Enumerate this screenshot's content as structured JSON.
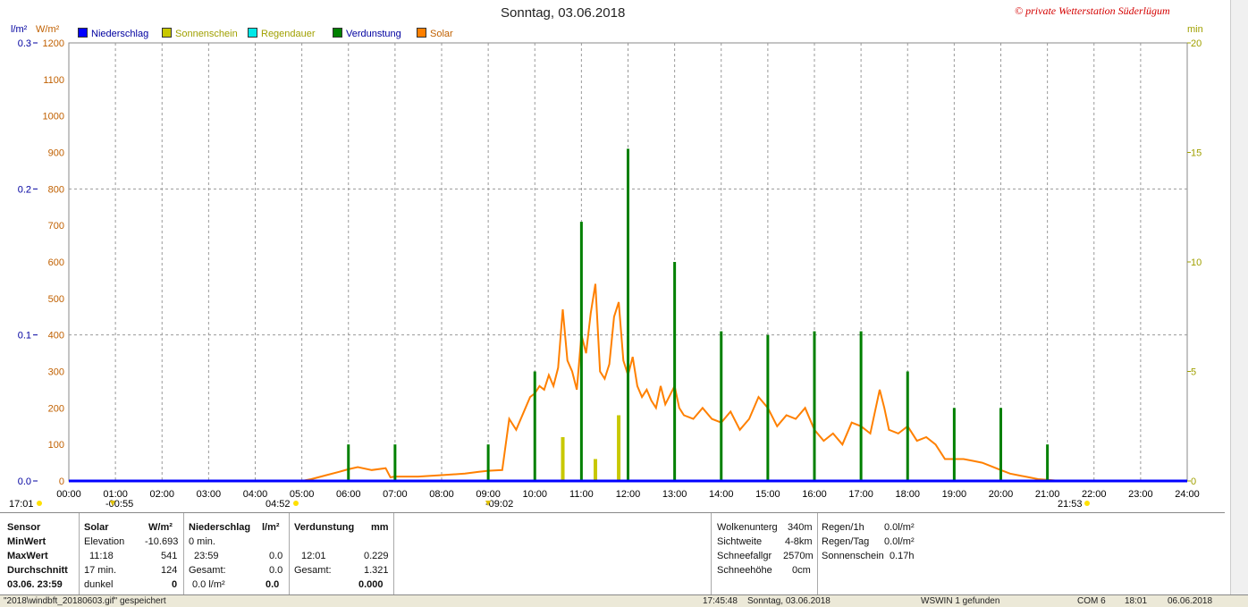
{
  "header": {
    "title": "Sonntag, 03.06.2018",
    "brand": "© private Wetterstation Süderlügum",
    "unit_left_1": "l/m²",
    "unit_left_2": "W/m²",
    "unit_right": "min"
  },
  "legend": [
    {
      "label": "Niederschlag",
      "color": "#0000ff",
      "text_color": "#0000a0"
    },
    {
      "label": "Sonnenschein",
      "color": "#c8c800",
      "text_color": "#a0a000"
    },
    {
      "label": "Regendauer",
      "color": "#00e8e8",
      "text_color": "#a0a000"
    },
    {
      "label": "Verdunstung",
      "color": "#008000",
      "text_color": "#0000a0"
    },
    {
      "label": "Solar",
      "color": "#ff8000",
      "text_color": "#c06000"
    }
  ],
  "sun_markers": [
    {
      "label": "17:01",
      "name": "sunset-prev"
    },
    {
      "label": "-00:55",
      "name": "moon-marker"
    },
    {
      "label": "04:52",
      "name": "sunrise"
    },
    {
      "label": "-09:02",
      "name": "noon-marker"
    },
    {
      "label": "21:53",
      "name": "sunset"
    }
  ],
  "chart_data": {
    "type": "line",
    "title": "Sonntag, 03.06.2018",
    "x_ticks": [
      "00:00",
      "01:00",
      "02:00",
      "03:00",
      "04:00",
      "05:00",
      "06:00",
      "07:00",
      "08:00",
      "09:00",
      "10:00",
      "11:00",
      "12:00",
      "13:00",
      "14:00",
      "15:00",
      "16:00",
      "17:00",
      "18:00",
      "19:00",
      "20:00",
      "21:00",
      "22:00",
      "23:00",
      "24:00"
    ],
    "xlim": [
      0,
      24
    ],
    "axes": {
      "left_precip": {
        "label": "l/m²",
        "ticks": [
          "0.0",
          "0.1",
          "0.2",
          "0.3"
        ],
        "range": [
          0,
          0.3
        ]
      },
      "left_solar": {
        "label": "W/m²",
        "ticks": [
          "0",
          "100",
          "200",
          "300",
          "400",
          "500",
          "600",
          "700",
          "800",
          "900",
          "1000",
          "1100",
          "1200"
        ],
        "range": [
          0,
          1200
        ]
      },
      "right_minutes": {
        "label": "min",
        "ticks": [
          "0",
          "5",
          "10",
          "15",
          "20"
        ],
        "range": [
          0,
          20
        ]
      }
    },
    "grid": true,
    "series": [
      {
        "name": "Solar",
        "axis": "left_solar",
        "color": "#ff8000",
        "points": [
          [
            0,
            0
          ],
          [
            5.0,
            0
          ],
          [
            5.2,
            5
          ],
          [
            5.5,
            15
          ],
          [
            5.8,
            25
          ],
          [
            6.0,
            32
          ],
          [
            6.2,
            38
          ],
          [
            6.5,
            30
          ],
          [
            6.8,
            35
          ],
          [
            6.9,
            10
          ],
          [
            7.0,
            12
          ],
          [
            7.5,
            12
          ],
          [
            8.0,
            16
          ],
          [
            8.5,
            20
          ],
          [
            8.8,
            25
          ],
          [
            9.0,
            28
          ],
          [
            9.3,
            30
          ],
          [
            9.45,
            170
          ],
          [
            9.6,
            140
          ],
          [
            9.8,
            200
          ],
          [
            9.9,
            230
          ],
          [
            10.0,
            240
          ],
          [
            10.1,
            260
          ],
          [
            10.2,
            250
          ],
          [
            10.3,
            290
          ],
          [
            10.4,
            260
          ],
          [
            10.5,
            310
          ],
          [
            10.6,
            470
          ],
          [
            10.7,
            330
          ],
          [
            10.8,
            300
          ],
          [
            10.9,
            250
          ],
          [
            11.0,
            400
          ],
          [
            11.1,
            350
          ],
          [
            11.2,
            460
          ],
          [
            11.3,
            540
          ],
          [
            11.4,
            300
          ],
          [
            11.5,
            280
          ],
          [
            11.6,
            320
          ],
          [
            11.7,
            450
          ],
          [
            11.8,
            490
          ],
          [
            11.9,
            330
          ],
          [
            12.0,
            290
          ],
          [
            12.1,
            340
          ],
          [
            12.2,
            260
          ],
          [
            12.3,
            230
          ],
          [
            12.4,
            250
          ],
          [
            12.5,
            220
          ],
          [
            12.6,
            200
          ],
          [
            12.7,
            260
          ],
          [
            12.8,
            210
          ],
          [
            13.0,
            260
          ],
          [
            13.1,
            200
          ],
          [
            13.2,
            180
          ],
          [
            13.4,
            170
          ],
          [
            13.6,
            200
          ],
          [
            13.8,
            170
          ],
          [
            14.0,
            160
          ],
          [
            14.2,
            190
          ],
          [
            14.4,
            140
          ],
          [
            14.6,
            170
          ],
          [
            14.8,
            230
          ],
          [
            15.0,
            200
          ],
          [
            15.2,
            150
          ],
          [
            15.4,
            180
          ],
          [
            15.6,
            170
          ],
          [
            15.8,
            200
          ],
          [
            16.0,
            140
          ],
          [
            16.2,
            110
          ],
          [
            16.4,
            130
          ],
          [
            16.6,
            100
          ],
          [
            16.8,
            160
          ],
          [
            17.0,
            150
          ],
          [
            17.2,
            130
          ],
          [
            17.4,
            250
          ],
          [
            17.5,
            200
          ],
          [
            17.6,
            140
          ],
          [
            17.8,
            130
          ],
          [
            18.0,
            150
          ],
          [
            18.2,
            110
          ],
          [
            18.4,
            120
          ],
          [
            18.6,
            100
          ],
          [
            18.8,
            60
          ],
          [
            19.0,
            60
          ],
          [
            19.2,
            60
          ],
          [
            19.4,
            55
          ],
          [
            19.6,
            50
          ],
          [
            19.8,
            40
          ],
          [
            20.0,
            30
          ],
          [
            20.2,
            20
          ],
          [
            20.4,
            15
          ],
          [
            20.6,
            10
          ],
          [
            20.8,
            5
          ],
          [
            21.0,
            3
          ],
          [
            21.2,
            1
          ],
          [
            21.5,
            0
          ]
        ]
      },
      {
        "name": "Verdunstung",
        "axis": "left_solar",
        "color": "#008000",
        "bars": [
          [
            6.0,
            100
          ],
          [
            7.0,
            100
          ],
          [
            9.0,
            100
          ],
          [
            10.0,
            300
          ],
          [
            11.0,
            710
          ],
          [
            12.0,
            910
          ],
          [
            13.0,
            600
          ],
          [
            14.0,
            410
          ],
          [
            15.0,
            400
          ],
          [
            16.0,
            410
          ],
          [
            17.0,
            410
          ],
          [
            18.0,
            300
          ],
          [
            19.0,
            200
          ],
          [
            20.0,
            200
          ],
          [
            21.0,
            100
          ]
        ]
      },
      {
        "name": "Sonnenschein",
        "axis": "left_solar",
        "color": "#c8c800",
        "bars": [
          [
            10.6,
            120
          ],
          [
            11.3,
            60
          ],
          [
            11.8,
            180
          ]
        ]
      },
      {
        "name": "Niederschlag",
        "axis": "left_precip",
        "color": "#0000ff",
        "points": [
          [
            0,
            0
          ],
          [
            24,
            0
          ]
        ]
      }
    ]
  },
  "panel": {
    "col1": [
      "Sensor",
      "MinWert",
      "MaxWert",
      "Durchschnitt",
      "03.06.  23:59"
    ],
    "col2_head": [
      "Solar",
      "W/m²"
    ],
    "col2_rows": [
      [
        "Elevation",
        "-10.693"
      ],
      [
        "11:18",
        "541"
      ],
      [
        "17 min.",
        "124"
      ],
      [
        "dunkel",
        "0"
      ]
    ],
    "col3_head": [
      "Niederschlag",
      "l/m²"
    ],
    "col3_rows": [
      [
        "0 min.",
        ""
      ],
      [
        "23:59",
        "0.0"
      ],
      [
        "Gesamt:",
        "0.0"
      ],
      [
        "0.0 l/m²",
        "0.0"
      ]
    ],
    "col4_head": [
      "Verdunstung",
      "mm"
    ],
    "col4_rows": [
      [
        "",
        ""
      ],
      [
        "12:01",
        "0.229"
      ],
      [
        "Gesamt:",
        "1.321"
      ],
      [
        "",
        "0.000"
      ]
    ],
    "right_a": [
      [
        "Wolkenunterg",
        "340m"
      ],
      [
        "Sichtweite",
        "4-8km"
      ],
      [
        "Schneefallgr",
        "2570m"
      ],
      [
        "Schneehöhe",
        "0cm"
      ]
    ],
    "right_b": [
      [
        "Regen/1h",
        "0.0l/m²"
      ],
      [
        "Regen/Tag",
        "0.0l/m²"
      ],
      [
        "Sonnenschein",
        "0.17h"
      ]
    ]
  },
  "status": {
    "file": "\"2018\\windbft_20180603.gif\" gespeichert",
    "time": "17:45:48",
    "date": "Sonntag, 03.06.2018",
    "device": "WSWIN 1 gefunden",
    "port": "COM 6",
    "clock": "18:01",
    "today": "06.06.2018"
  }
}
